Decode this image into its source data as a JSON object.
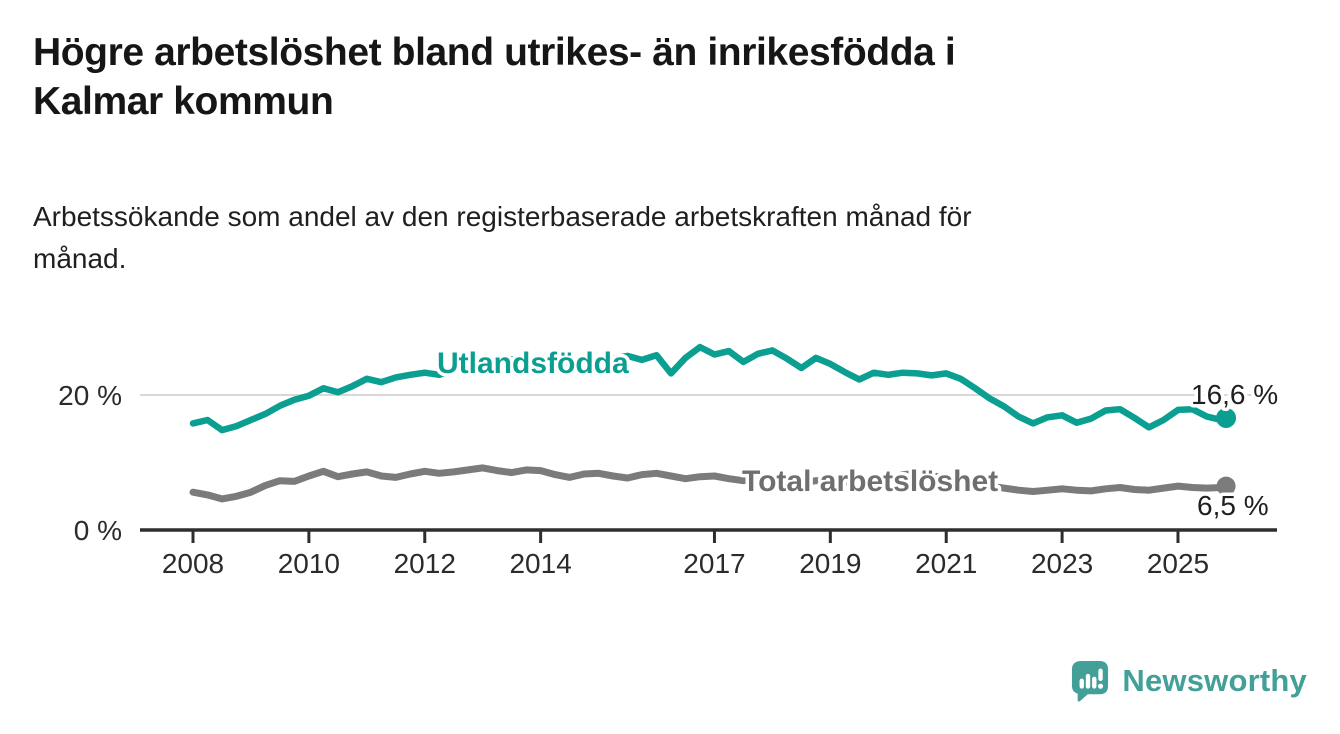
{
  "header": {
    "title_lines": [
      "Högre arbetslöshet bland utrikes- än inrikesfödda i",
      "Kalmar kommun"
    ],
    "subtitle_lines": [
      "Arbetssökande som andel av den registerbaserade arbetskraften månad för",
      "månad."
    ]
  },
  "chart_data": {
    "type": "line",
    "title": "Högre arbetslöshet bland utrikes- än inrikesfödda i Kalmar kommun",
    "subtitle": "Arbetssökande som andel av den registerbaserade arbetskraften månad för månad.",
    "x_axis": {
      "tick_years": [
        2008,
        2010,
        2012,
        2014,
        2017,
        2019,
        2021,
        2023,
        2025
      ],
      "tick_labels": [
        "2008",
        "2010",
        "2012",
        "2014",
        "2017",
        "2019",
        "2021",
        "2023",
        "2025"
      ]
    },
    "y_axis": {
      "tick_values": [
        20,
        0
      ],
      "tick_labels": [
        "20 %",
        "0 %"
      ],
      "range": [
        0,
        29
      ]
    },
    "gridlines": [
      20
    ],
    "x_range_years": [
      2008,
      2025.83
    ],
    "grid_on": true,
    "legend_position": "inline-on-line",
    "series": [
      {
        "name": "Utlandsfödda",
        "color": "#0b9f91",
        "label_color": "#0b9f91",
        "x_start": 2008,
        "x_step_years": 0.25,
        "y": [
          15.8,
          16.3,
          14.8,
          15.4,
          16.3,
          17.2,
          18.4,
          19.3,
          19.9,
          21.0,
          20.4,
          21.3,
          22.4,
          21.9,
          22.6,
          23.0,
          23.3,
          23.0,
          23.8,
          24.2,
          24.0,
          24.6,
          25.3,
          24.6,
          24.1,
          24.4,
          24.9,
          25.2,
          25.0,
          25.4,
          25.8,
          25.2,
          25.9,
          23.2,
          25.5,
          27.1,
          26.0,
          26.5,
          24.9,
          26.1,
          26.6,
          25.4,
          24.0,
          25.5,
          24.6,
          23.4,
          22.3,
          23.3,
          23.0,
          23.3,
          23.2,
          22.9,
          23.2,
          22.4,
          21.0,
          19.5,
          18.3,
          16.8,
          15.8,
          16.7,
          17.0,
          15.9,
          16.5,
          17.7,
          17.9,
          16.6,
          15.2,
          16.3,
          17.8,
          17.9,
          16.8,
          16.3
        ],
        "end_point": {
          "x": 2025.83,
          "y": 16.6,
          "label": "16,6 %"
        }
      },
      {
        "name": "Total arbetslöshet",
        "color": "#7b7b7b",
        "label_color": "#6f6f6f",
        "x_start": 2008,
        "x_step_years": 0.25,
        "y": [
          5.6,
          5.2,
          4.6,
          5.0,
          5.6,
          6.6,
          7.3,
          7.2,
          8.0,
          8.7,
          7.9,
          8.3,
          8.6,
          8.0,
          7.8,
          8.3,
          8.7,
          8.4,
          8.6,
          8.9,
          9.2,
          8.8,
          8.5,
          8.9,
          8.8,
          8.2,
          7.8,
          8.3,
          8.4,
          8.0,
          7.7,
          8.2,
          8.4,
          8.0,
          7.6,
          7.9,
          8.0,
          7.6,
          7.3,
          7.6,
          7.7,
          7.3,
          7.0,
          7.3,
          7.4,
          7.1,
          7.0,
          7.3,
          7.6,
          8.2,
          8.4,
          8.0,
          7.8,
          7.3,
          6.9,
          6.5,
          6.2,
          5.9,
          5.7,
          5.9,
          6.1,
          5.9,
          5.8,
          6.1,
          6.3,
          6.0,
          5.9,
          6.2,
          6.5,
          6.3,
          6.2,
          6.3
        ],
        "end_point": {
          "x": 2025.83,
          "y": 6.5,
          "label": "6,5 %"
        }
      }
    ]
  },
  "footer": {
    "brand": "Newsworthy",
    "brand_color": "#43a098"
  }
}
